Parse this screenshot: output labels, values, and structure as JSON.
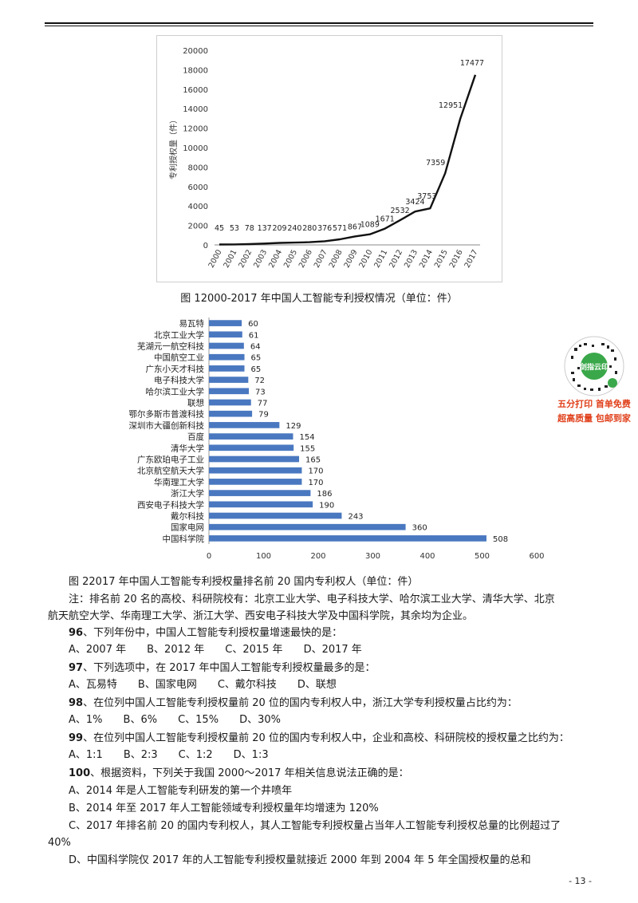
{
  "figure1": {
    "caption": "图 12000-2017 年中国人工智能专利授权情况（单位：件）",
    "chart_data": {
      "type": "line",
      "title": "",
      "ylabel": "专利授权量（件）",
      "xlabel": "",
      "x": [
        "2000",
        "2001",
        "2002",
        "2003",
        "2004",
        "2005",
        "2006",
        "2007",
        "2008",
        "2009",
        "2010",
        "2011",
        "2012",
        "2013",
        "2014",
        "2015",
        "2016",
        "2017"
      ],
      "series": [
        {
          "values": [
            45,
            53,
            78,
            137,
            209,
            240,
            280,
            376,
            571,
            867,
            1089,
            1671,
            2532,
            3424,
            3753,
            7359,
            12951,
            17477
          ]
        }
      ],
      "data_labels": [
        "45",
        "53",
        "78",
        "137",
        "209",
        "240",
        "280",
        "376",
        "571",
        "867",
        "1089",
        "1671",
        "2532",
        "3424",
        "3753",
        "7359",
        "12951",
        "17477"
      ],
      "ylim": [
        0,
        20000
      ],
      "yticks": [
        "0",
        "2000",
        "4000",
        "6000",
        "8000",
        "10000",
        "12000",
        "14000",
        "16000",
        "18000",
        "20000"
      ],
      "grid": false,
      "line_color": "#111111"
    }
  },
  "figure2": {
    "caption": "图 22017 年中国人工智能专利授权量排名前 20 国内专利权人（单位：件）",
    "chart_data": {
      "type": "bar",
      "orientation": "horizontal",
      "title": "",
      "categories": [
        "易瓦特",
        "北京工业大学",
        "芜湖元一航空科技",
        "中国航空工业",
        "广东小天才科技",
        "电子科技大学",
        "哈尔滨工业大学",
        "联想",
        "鄂尔多斯市普渡科技",
        "深圳市大疆创新科技",
        "百度",
        "清华大学",
        "广东欧珀电子工业",
        "北京航空航天大学",
        "华南理工大学",
        "浙江大学",
        "西安电子科技大学",
        "戴尔科技",
        "国家电网",
        "中国科学院"
      ],
      "values": [
        60,
        61,
        64,
        65,
        65,
        72,
        73,
        77,
        79,
        129,
        154,
        155,
        165,
        170,
        170,
        186,
        190,
        243,
        360,
        508
      ],
      "xlim": [
        0,
        600
      ],
      "xticks": [
        "0",
        "100",
        "200",
        "300",
        "400",
        "500",
        "600"
      ],
      "bar_color": "#4a78c0"
    }
  },
  "note": "注：排名前 20 名的高校、科研院校有：北京工业大学、电子科技大学、哈尔滨工业大学、清华大学、北京",
  "note_cont": "航天航空大学、华南理工大学、浙江大学、西安电子科技大学及中国科学院，其余均为企业。",
  "questions": [
    {
      "num": "96",
      "stem": "、下列年份中，中国人工智能专利授权量增速最快的是：",
      "options": [
        "A、2007 年",
        "B、2012 年",
        "C、2015 年",
        "D、2017 年"
      ]
    },
    {
      "num": "97",
      "stem": "、下列选项中，在 2017 年中国人工智能专利授权量最多的是：",
      "options": [
        "A、瓦易特",
        "B、国家电网",
        "C、戴尔科技",
        "D、联想"
      ]
    },
    {
      "num": "98",
      "stem": "、在位列中国人工智能专利授权量前 20 位的国内专利权人中，浙江大学专利授权量占比约为：",
      "options": [
        "A、1%",
        "B、6%",
        "C、15%",
        "D、30%"
      ]
    },
    {
      "num": "99",
      "stem": "、在位列中国人工智能专利授权量前 20 位的国内专利权人中，企业和高校、科研院校的授权量之比约为：",
      "options": [
        "A、1:1",
        "B、2:3",
        "C、1:2",
        "D、1:3"
      ]
    },
    {
      "num": "100",
      "stem": "、根据资料，下列关于我国 2000～2017 年相关信息说法正确的是：",
      "options": []
    }
  ],
  "q100_statements": [
    "A、2014 年是人工智能专利研发的第一个井喷年",
    "B、2014 年至 2017 年人工智能领域专利授权量年均增速为 120%",
    "C、2017 年排名前 20 的国内专利权人，其人工智能专利授权量占当年人工智能专利授权总量的比例超过了",
    "40%",
    "D、中国科学院仅 2017 年的人工智能专利授权量就接近 2000 年到 2004 年 5 年全国授权量的总和"
  ],
  "promo": {
    "qr_text": "剑指云印",
    "line1": "五分打印  首单免费",
    "line2": "超高质量  包邮到家",
    "accent": "#e0401b"
  },
  "page_number": "- 13 -"
}
